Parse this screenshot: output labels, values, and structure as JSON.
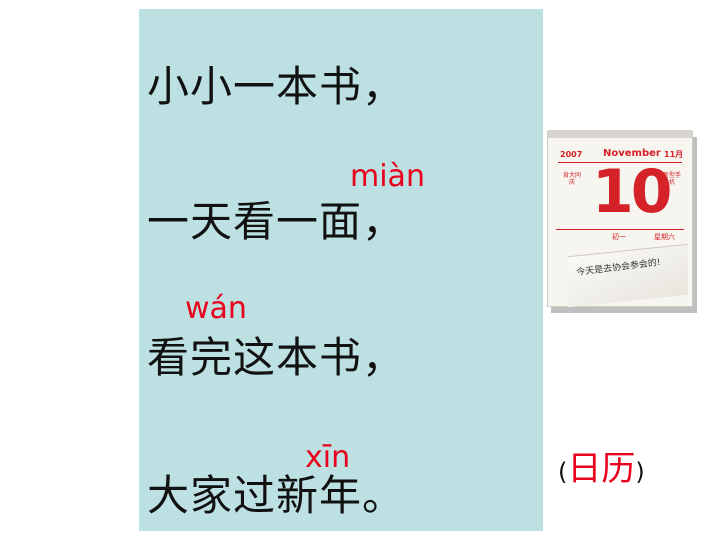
{
  "riddle": {
    "lines": [
      "小小一本书，",
      "一天看一面，",
      "看完这本书，",
      "大家过新年。"
    ],
    "pinyin": [
      "miàn",
      "wán",
      "xīn"
    ]
  },
  "calendar": {
    "year": "2007",
    "month": "November",
    "month_num": "11月",
    "day": "10",
    "side_left": "肯大同庆",
    "side_right": "新型手机",
    "lunar": "初一",
    "weekday": "星期六",
    "note": "今天是去协会参会的!"
  },
  "answer": {
    "open": "(",
    "word": "日历",
    "close": ")"
  },
  "colors": {
    "panel": "#bde0e2",
    "pinyin": "#e8001c",
    "calendar_red": "#d52228"
  }
}
